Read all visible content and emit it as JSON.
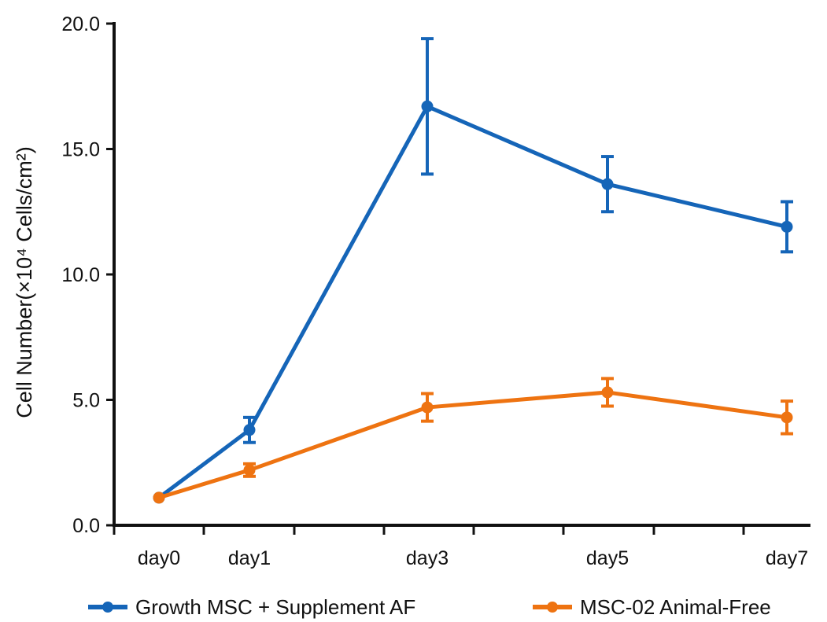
{
  "chart_data": {
    "type": "line",
    "categories": [
      "day0",
      "day1",
      "day3",
      "day5",
      "day7"
    ],
    "x": [
      0,
      1,
      3,
      5,
      7
    ],
    "ylabel": "Cell Number(×10⁴ Cells/cm²)",
    "xlabel": "",
    "ylim": [
      0,
      20
    ],
    "yticks": [
      "0.0",
      "5.0",
      "10.0",
      "15.0",
      "20.0"
    ],
    "grid": false,
    "legend": "bottom",
    "series": [
      {
        "name": "Growth MSC + Supplement AF",
        "color": "#1565b8",
        "marker": "circle",
        "values": [
          1.1,
          3.8,
          16.7,
          13.6,
          11.9
        ],
        "error": [
          0,
          0.5,
          2.7,
          1.1,
          1.0
        ]
      },
      {
        "name": "MSC-02 Animal-Free",
        "color": "#ee7311",
        "marker": "circle",
        "values": [
          1.1,
          2.2,
          4.7,
          5.3,
          4.3
        ],
        "error": [
          0,
          0.25,
          0.55,
          0.55,
          0.65
        ]
      }
    ]
  }
}
